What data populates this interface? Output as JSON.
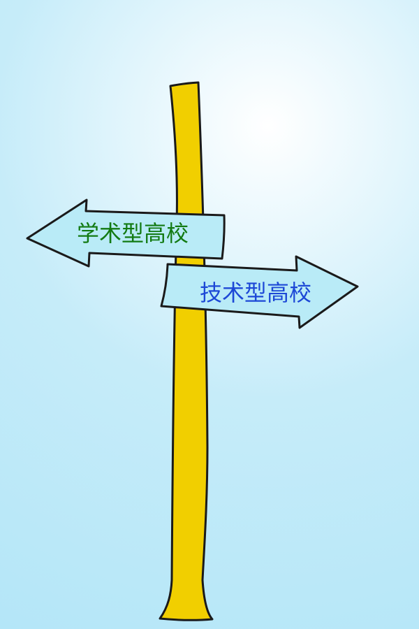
{
  "signs": {
    "left": {
      "label": "学术型高校",
      "color": "#127a12",
      "direction": "left"
    },
    "right": {
      "label": "技术型高校",
      "color": "#1d48d6",
      "direction": "right"
    }
  },
  "colors": {
    "post": "#f1cf00",
    "sign_fill": "#b9ebf7",
    "outline": "#1a1a1a"
  }
}
